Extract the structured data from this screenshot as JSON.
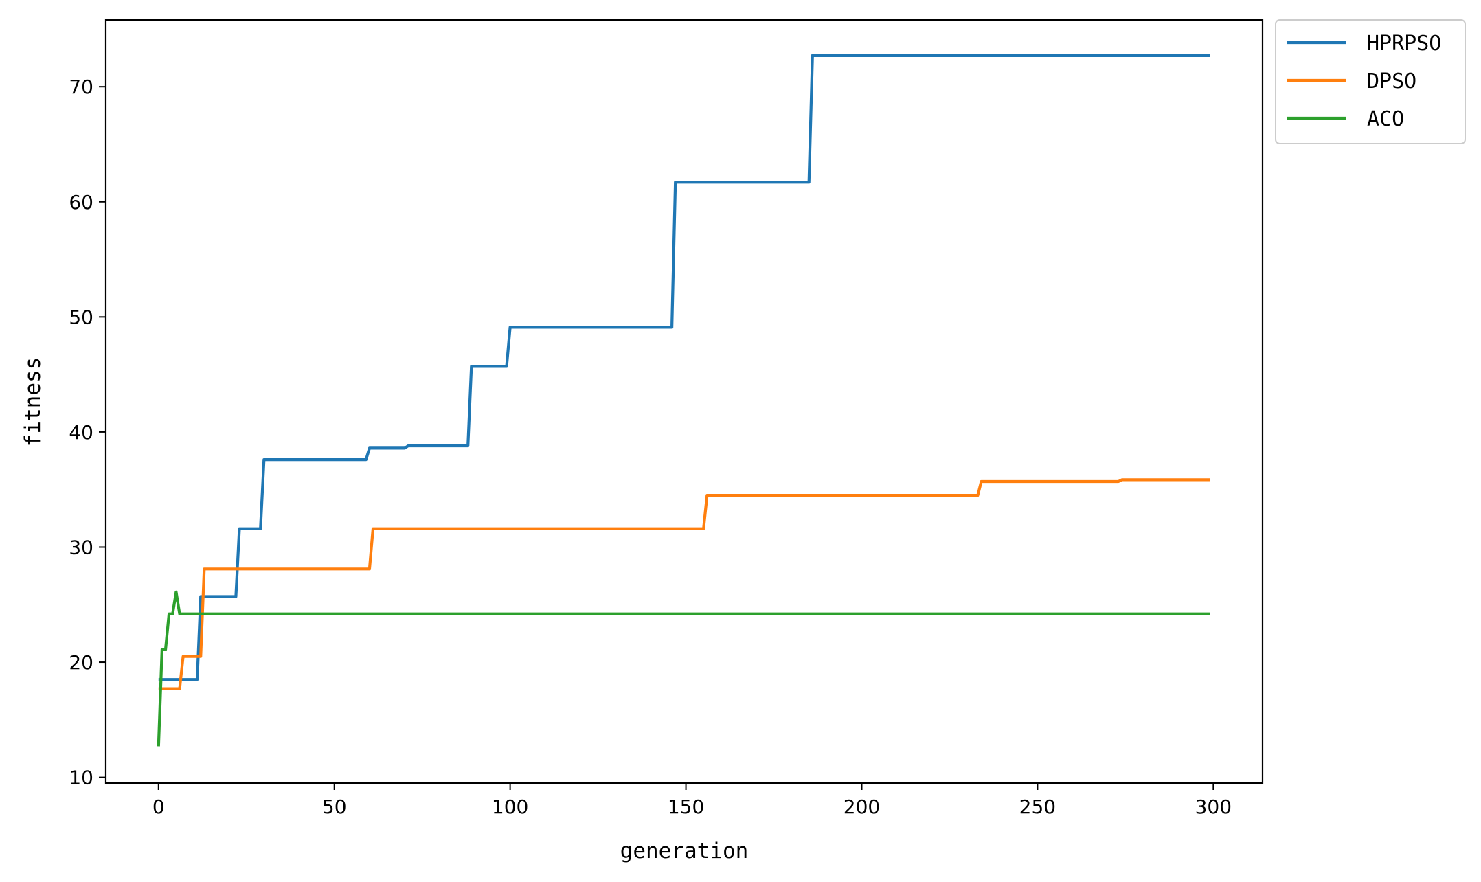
{
  "chart_data": {
    "type": "line",
    "title": "",
    "xlabel": "generation",
    "ylabel": "fitness",
    "xlim": [
      -15,
      314
    ],
    "ylim": [
      9.5,
      75.8
    ],
    "xticks": [
      0,
      50,
      100,
      150,
      200,
      250,
      300
    ],
    "yticks": [
      10,
      20,
      30,
      40,
      50,
      60,
      70
    ],
    "grid": false,
    "legend_position": "outside top-right",
    "series": [
      {
        "name": "HPRPSO",
        "color": "#1f77b4",
        "points": [
          [
            0,
            18.5
          ],
          [
            11,
            18.5
          ],
          [
            12,
            25.7
          ],
          [
            22,
            25.7
          ],
          [
            23,
            31.6
          ],
          [
            29,
            31.6
          ],
          [
            30,
            37.6
          ],
          [
            59,
            37.6
          ],
          [
            60,
            38.6
          ],
          [
            70,
            38.6
          ],
          [
            71,
            38.8
          ],
          [
            88,
            38.8
          ],
          [
            89,
            45.7
          ],
          [
            99,
            45.7
          ],
          [
            100,
            49.1
          ],
          [
            146,
            49.1
          ],
          [
            147,
            61.7
          ],
          [
            185,
            61.7
          ],
          [
            186,
            72.7
          ],
          [
            299,
            72.7
          ]
        ]
      },
      {
        "name": "DPSO",
        "color": "#ff7f0e",
        "points": [
          [
            0,
            17.7
          ],
          [
            6,
            17.7
          ],
          [
            7,
            20.5
          ],
          [
            11,
            20.5
          ],
          [
            12,
            20.5
          ],
          [
            13,
            28.1
          ],
          [
            60,
            28.1
          ],
          [
            61,
            31.6
          ],
          [
            155,
            31.6
          ],
          [
            156,
            34.5
          ],
          [
            233,
            34.5
          ],
          [
            234,
            35.7
          ],
          [
            273,
            35.7
          ],
          [
            274,
            35.85
          ],
          [
            299,
            35.85
          ]
        ]
      },
      {
        "name": "ACO",
        "color": "#2ca02c",
        "points": [
          [
            0,
            12.7
          ],
          [
            1,
            21.1
          ],
          [
            2,
            21.1
          ],
          [
            3,
            24.2
          ],
          [
            4,
            24.2
          ],
          [
            5,
            26.1
          ],
          [
            6,
            24.2
          ],
          [
            299,
            24.2
          ]
        ]
      }
    ]
  }
}
